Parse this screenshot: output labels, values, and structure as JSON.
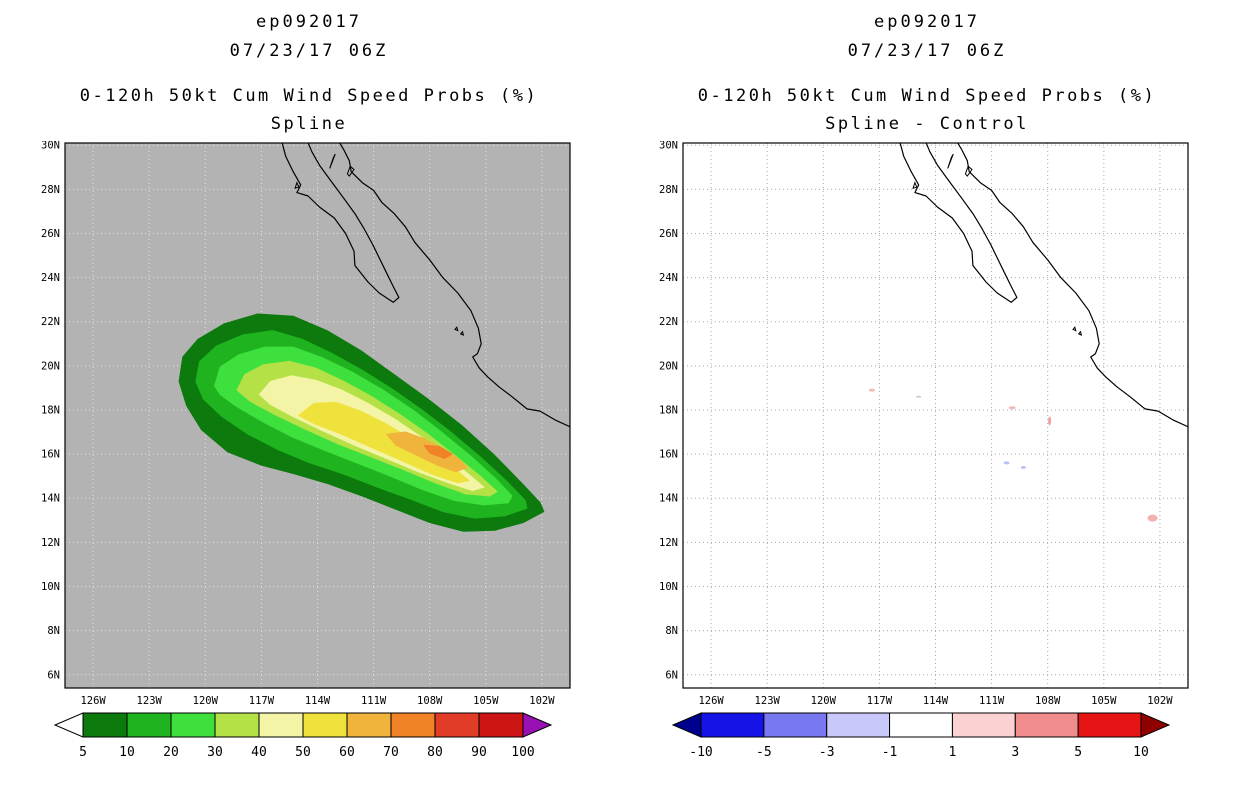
{
  "panels": [
    {
      "title1": "ep092017",
      "title2": "07/23/17 06Z",
      "subtitle1": "0-120h 50kt Cum Wind Speed Probs (%)",
      "subtitle2": "Spline"
    },
    {
      "title1": "ep092017",
      "title2": "07/23/17 06Z",
      "subtitle1": "0-120h 50kt Cum Wind Speed Probs (%)",
      "subtitle2": "Spline - Control"
    }
  ],
  "geo": {
    "coastlines": [
      [
        [
          -115.95,
          30.3
        ],
        [
          -115.7,
          29.5
        ],
        [
          -115.3,
          28.8
        ],
        [
          -114.9,
          28.2
        ],
        [
          -115.1,
          27.85
        ],
        [
          -114.5,
          27.7
        ],
        [
          -113.9,
          27.2
        ],
        [
          -113.1,
          26.7
        ],
        [
          -112.5,
          26.0
        ],
        [
          -112.05,
          25.2
        ],
        [
          -112.0,
          24.55
        ],
        [
          -111.3,
          23.8
        ],
        [
          -110.7,
          23.3
        ],
        [
          -109.95,
          22.88
        ],
        [
          -109.65,
          23.1
        ],
        [
          -109.95,
          23.6
        ],
        [
          -110.3,
          24.2
        ],
        [
          -110.65,
          24.8
        ],
        [
          -111.05,
          25.5
        ],
        [
          -111.5,
          26.2
        ],
        [
          -112.0,
          26.9
        ],
        [
          -112.6,
          27.6
        ],
        [
          -113.3,
          28.4
        ],
        [
          -113.9,
          29.1
        ],
        [
          -114.3,
          29.7
        ],
        [
          -114.6,
          30.3
        ]
      ],
      [
        [
          -112.95,
          30.3
        ],
        [
          -112.6,
          29.8
        ],
        [
          -112.3,
          29.3
        ],
        [
          -112.2,
          28.8
        ],
        [
          -111.6,
          28.3
        ],
        [
          -111.0,
          27.95
        ],
        [
          -110.55,
          27.4
        ],
        [
          -109.9,
          26.9
        ],
        [
          -109.3,
          26.3
        ],
        [
          -108.8,
          25.6
        ],
        [
          -108.0,
          24.8
        ],
        [
          -107.3,
          24.0
        ],
        [
          -106.5,
          23.3
        ],
        [
          -105.8,
          22.5
        ],
        [
          -105.4,
          21.7
        ],
        [
          -105.25,
          21.0
        ],
        [
          -105.45,
          20.55
        ],
        [
          -105.7,
          20.4
        ],
        [
          -105.35,
          19.9
        ],
        [
          -104.9,
          19.5
        ],
        [
          -104.3,
          19.05
        ],
        [
          -103.6,
          18.6
        ],
        [
          -102.8,
          18.05
        ],
        [
          -102.1,
          17.95
        ],
        [
          -101.3,
          17.55
        ],
        [
          -100.4,
          17.2
        ]
      ]
    ],
    "islands": [
      [
        [
          -113.35,
          28.95
        ],
        [
          -113.15,
          29.45
        ],
        [
          -113.05,
          29.6
        ],
        [
          -113.25,
          29.15
        ]
      ],
      [
        [
          -112.4,
          28.7
        ],
        [
          -112.25,
          29.05
        ],
        [
          -112.05,
          28.9
        ],
        [
          -112.3,
          28.6
        ]
      ],
      [
        [
          -115.2,
          28.05
        ],
        [
          -115.1,
          28.3
        ],
        [
          -115.0,
          28.1
        ]
      ],
      [
        [
          -106.65,
          21.65
        ],
        [
          -106.55,
          21.75
        ],
        [
          -106.5,
          21.6
        ]
      ],
      [
        [
          -106.35,
          21.45
        ],
        [
          -106.25,
          21.55
        ],
        [
          -106.2,
          21.4
        ]
      ]
    ]
  },
  "chart_data": [
    {
      "type": "contour-map",
      "title": "ep092017 07/23/17 06Z",
      "subtitle": "0-120h 50kt Cum Wind Speed Probs (%) - Spline",
      "lon_range": [
        -127.5,
        -100.5
      ],
      "lat_range": [
        5.4,
        30.1
      ],
      "lon_ticks": [
        "126W",
        "123W",
        "120W",
        "117W",
        "114W",
        "111W",
        "108W",
        "105W",
        "102W"
      ],
      "lat_ticks": [
        "30N",
        "28N",
        "26N",
        "24N",
        "22N",
        "20N",
        "18N",
        "16N",
        "14N",
        "12N",
        "10N",
        "8N",
        "6N"
      ],
      "map_bg": "#b3b3b3",
      "grid_color": "#e2e2e2",
      "colorbar_labels": [
        "5",
        "10",
        "20",
        "30",
        "40",
        "50",
        "60",
        "70",
        "80",
        "90",
        "100"
      ],
      "colorbar_colors": [
        "#0c7a0c",
        "#1fb41f",
        "#3ee03e",
        "#b4e146",
        "#f4f4a6",
        "#f0e23c",
        "#f0b43c",
        "#f08228",
        "#e13c28",
        "#cc1414"
      ],
      "under_arrow_color": "#ffffff",
      "over_arrow_color": "#9910b4",
      "contours": [
        {
          "level": 5,
          "color": "#0c7a0c",
          "points": [
            [
              -121.4,
              19.3
            ],
            [
              -121.2,
              20.4
            ],
            [
              -120.4,
              21.2
            ],
            [
              -119.0,
              21.9
            ],
            [
              -117.2,
              22.35
            ],
            [
              -115.3,
              22.25
            ],
            [
              -113.5,
              21.6
            ],
            [
              -111.7,
              20.7
            ],
            [
              -109.9,
              19.6
            ],
            [
              -108.1,
              18.5
            ],
            [
              -106.3,
              17.3
            ],
            [
              -104.6,
              16.0
            ],
            [
              -103.1,
              14.7
            ],
            [
              -102.1,
              13.8
            ],
            [
              -101.9,
              13.4
            ],
            [
              -103.0,
              12.9
            ],
            [
              -104.5,
              12.55
            ],
            [
              -106.2,
              12.5
            ],
            [
              -108.0,
              12.9
            ],
            [
              -109.8,
              13.5
            ],
            [
              -111.6,
              14.1
            ],
            [
              -113.4,
              14.65
            ],
            [
              -115.2,
              15.1
            ],
            [
              -117.0,
              15.5
            ],
            [
              -118.8,
              16.1
            ],
            [
              -120.2,
              17.1
            ],
            [
              -121.0,
              18.2
            ]
          ]
        },
        {
          "level": 10,
          "color": "#1fb41f",
          "points": [
            [
              -120.5,
              19.3
            ],
            [
              -120.3,
              20.2
            ],
            [
              -119.4,
              20.9
            ],
            [
              -118.0,
              21.4
            ],
            [
              -116.4,
              21.6
            ],
            [
              -114.8,
              21.2
            ],
            [
              -113.2,
              20.55
            ],
            [
              -111.6,
              19.8
            ],
            [
              -110.0,
              18.95
            ],
            [
              -108.4,
              18.0
            ],
            [
              -106.8,
              16.95
            ],
            [
              -105.2,
              15.8
            ],
            [
              -103.8,
              14.7
            ],
            [
              -102.9,
              13.9
            ],
            [
              -102.8,
              13.55
            ],
            [
              -104.0,
              13.2
            ],
            [
              -105.6,
              13.1
            ],
            [
              -107.3,
              13.4
            ],
            [
              -109.0,
              13.95
            ],
            [
              -110.8,
              14.5
            ],
            [
              -112.6,
              15.1
            ],
            [
              -114.4,
              15.6
            ],
            [
              -116.1,
              16.2
            ],
            [
              -117.7,
              16.9
            ],
            [
              -119.1,
              17.7
            ],
            [
              -120.1,
              18.5
            ]
          ]
        },
        {
          "level": 20,
          "color": "#3ee03e",
          "points": [
            [
              -119.5,
              19.1
            ],
            [
              -119.2,
              19.95
            ],
            [
              -118.2,
              20.5
            ],
            [
              -116.8,
              20.85
            ],
            [
              -115.3,
              20.85
            ],
            [
              -113.7,
              20.35
            ],
            [
              -112.1,
              19.7
            ],
            [
              -110.5,
              18.9
            ],
            [
              -108.9,
              18.0
            ],
            [
              -107.3,
              16.95
            ],
            [
              -105.8,
              15.9
            ],
            [
              -104.5,
              14.9
            ],
            [
              -103.6,
              14.1
            ],
            [
              -103.8,
              13.8
            ],
            [
              -105.1,
              13.7
            ],
            [
              -106.7,
              13.9
            ],
            [
              -108.4,
              14.4
            ],
            [
              -110.1,
              15.0
            ],
            [
              -111.9,
              15.6
            ],
            [
              -113.7,
              16.2
            ],
            [
              -115.4,
              16.8
            ],
            [
              -117.0,
              17.5
            ],
            [
              -118.4,
              18.2
            ],
            [
              -119.2,
              18.7
            ]
          ]
        },
        {
          "level": 30,
          "color": "#b4e146",
          "points": [
            [
              -118.3,
              18.9
            ],
            [
              -117.9,
              19.6
            ],
            [
              -116.9,
              20.05
            ],
            [
              -115.5,
              20.2
            ],
            [
              -114.1,
              19.9
            ],
            [
              -112.6,
              19.3
            ],
            [
              -111.1,
              18.6
            ],
            [
              -109.6,
              17.8
            ],
            [
              -108.1,
              16.9
            ],
            [
              -106.6,
              15.9
            ],
            [
              -105.3,
              15.0
            ],
            [
              -104.4,
              14.3
            ],
            [
              -104.8,
              14.1
            ],
            [
              -106.1,
              14.2
            ],
            [
              -107.7,
              14.7
            ],
            [
              -109.4,
              15.3
            ],
            [
              -111.2,
              15.9
            ],
            [
              -113.0,
              16.5
            ],
            [
              -114.7,
              17.15
            ],
            [
              -116.3,
              17.8
            ],
            [
              -117.6,
              18.4
            ]
          ]
        },
        {
          "level": 40,
          "color": "#f4f4a6",
          "points": [
            [
              -117.1,
              18.7
            ],
            [
              -116.5,
              19.3
            ],
            [
              -115.4,
              19.55
            ],
            [
              -114.1,
              19.35
            ],
            [
              -112.7,
              18.9
            ],
            [
              -111.3,
              18.3
            ],
            [
              -109.9,
              17.6
            ],
            [
              -108.5,
              16.8
            ],
            [
              -107.1,
              15.9
            ],
            [
              -105.8,
              15.0
            ],
            [
              -105.1,
              14.5
            ],
            [
              -105.7,
              14.35
            ],
            [
              -107.0,
              14.7
            ],
            [
              -108.6,
              15.2
            ],
            [
              -110.3,
              15.8
            ],
            [
              -112.0,
              16.4
            ],
            [
              -113.7,
              17.05
            ],
            [
              -115.3,
              17.7
            ],
            [
              -116.5,
              18.25
            ]
          ]
        },
        {
          "level": 50,
          "color": "#f0e23c",
          "points": [
            [
              -115.0,
              17.75
            ],
            [
              -114.2,
              18.3
            ],
            [
              -113.0,
              18.35
            ],
            [
              -111.7,
              17.95
            ],
            [
              -110.4,
              17.4
            ],
            [
              -109.1,
              16.75
            ],
            [
              -107.8,
              16.0
            ],
            [
              -106.6,
              15.3
            ],
            [
              -105.9,
              14.8
            ],
            [
              -106.5,
              14.7
            ],
            [
              -107.9,
              15.1
            ],
            [
              -109.5,
              15.7
            ],
            [
              -111.1,
              16.3
            ],
            [
              -112.7,
              16.9
            ],
            [
              -114.1,
              17.35
            ]
          ]
        },
        {
          "level": 60,
          "color": "#f0b43c",
          "points": [
            [
              -110.3,
              16.9
            ],
            [
              -109.3,
              17.0
            ],
            [
              -108.3,
              16.7
            ],
            [
              -107.3,
              16.25
            ],
            [
              -106.4,
              15.75
            ],
            [
              -106.0,
              15.4
            ],
            [
              -106.6,
              15.2
            ],
            [
              -107.6,
              15.5
            ],
            [
              -108.7,
              15.95
            ],
            [
              -109.8,
              16.4
            ]
          ]
        },
        {
          "level": 70,
          "color": "#f08228",
          "points": [
            [
              -108.3,
              16.4
            ],
            [
              -107.5,
              16.35
            ],
            [
              -106.8,
              16.0
            ],
            [
              -107.2,
              15.8
            ],
            [
              -108.0,
              16.05
            ]
          ]
        }
      ]
    },
    {
      "type": "anomaly-map",
      "title": "ep092017 07/23/17 06Z",
      "subtitle": "0-120h 50kt Cum Wind Speed Probs (%) - Spline - Control",
      "lon_range": [
        -127.5,
        -100.5
      ],
      "lat_range": [
        5.4,
        30.1
      ],
      "lon_ticks": [
        "126W",
        "123W",
        "120W",
        "117W",
        "114W",
        "111W",
        "108W",
        "105W",
        "102W"
      ],
      "lat_ticks": [
        "30N",
        "28N",
        "26N",
        "24N",
        "22N",
        "20N",
        "18N",
        "16N",
        "14N",
        "12N",
        "10N",
        "8N",
        "6N"
      ],
      "map_bg": "#ffffff",
      "grid_color": "#a8a8a8",
      "colorbar_labels": [
        "-10",
        "-5",
        "-3",
        "-1",
        "1",
        "3",
        "5",
        "10"
      ],
      "colorbar_colors": [
        "#1414e6",
        "#7878f0",
        "#c8c8fa",
        "#ffffff",
        "#fad2d2",
        "#f08c8c",
        "#e61414"
      ],
      "under_arrow_color": "#00008f",
      "over_arrow_color": "#8f0000",
      "spots": [
        {
          "lon": -117.4,
          "lat": 18.9,
          "color": "#f5b8b8",
          "w": 6,
          "h": 3
        },
        {
          "lon": -114.9,
          "lat": 18.6,
          "color": "#cccccc",
          "w": 5,
          "h": 2
        },
        {
          "lon": -109.9,
          "lat": 18.1,
          "color": "#f5b8b8",
          "w": 7,
          "h": 3
        },
        {
          "lon": -107.9,
          "lat": 17.5,
          "color": "#f0a0a0",
          "w": 3,
          "h": 9
        },
        {
          "lon": -110.2,
          "lat": 15.6,
          "color": "#b8c0f5",
          "w": 6,
          "h": 3
        },
        {
          "lon": -109.3,
          "lat": 15.4,
          "color": "#b8c0f5",
          "w": 5,
          "h": 3
        },
        {
          "lon": -102.4,
          "lat": 13.1,
          "color": "#f5b0b0",
          "w": 10,
          "h": 7
        }
      ]
    }
  ]
}
